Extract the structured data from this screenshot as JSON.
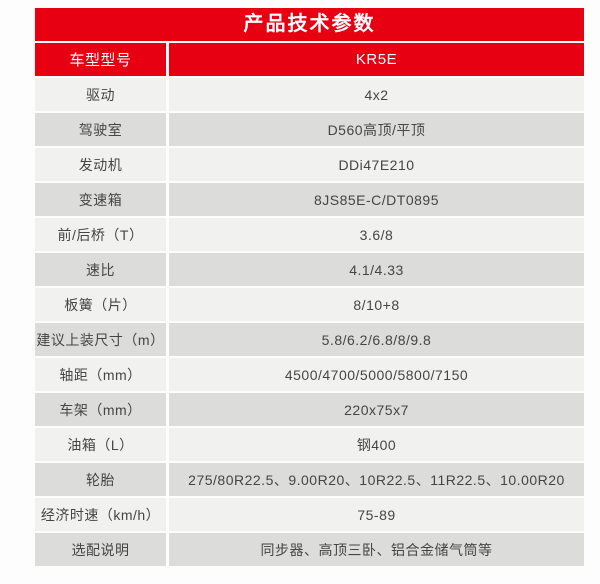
{
  "colors": {
    "brand_red": "#e60012",
    "row_light": "#f1f1ef",
    "row_dark": "#dcdcdb",
    "text": "#454545",
    "header_text": "#ffffff"
  },
  "table": {
    "title": "产品技术参数",
    "model_row": {
      "label": "车型型号",
      "value": "KR5E"
    },
    "rows": [
      {
        "label": "驱动",
        "value": "4x2"
      },
      {
        "label": "驾驶室",
        "value": "D560高顶/平顶"
      },
      {
        "label": "发动机",
        "value": "DDi47E210"
      },
      {
        "label": "变速箱",
        "value": "8JS85E-C/DT0895"
      },
      {
        "label": "前/后桥（T）",
        "value": "3.6/8"
      },
      {
        "label": "速比",
        "value": "4.1/4.33"
      },
      {
        "label": "板簧（片）",
        "value": "8/10+8"
      },
      {
        "label": "建议上装尺寸（m）",
        "value": "5.8/6.2/6.8/8/9.8"
      },
      {
        "label": "轴距（mm）",
        "value": "4500/4700/5000/5800/7150"
      },
      {
        "label": "车架（mm）",
        "value": "220x75x7"
      },
      {
        "label": "油箱（L）",
        "value": "钢400"
      },
      {
        "label": "轮胎",
        "value": "275/80R22.5、9.00R20、10R22.5、11R22.5、10.00R20"
      },
      {
        "label": "经济时速（km/h）",
        "value": "75-89"
      },
      {
        "label": "选配说明",
        "value": "同步器、高顶三卧、铝合金储气筒等"
      }
    ]
  }
}
